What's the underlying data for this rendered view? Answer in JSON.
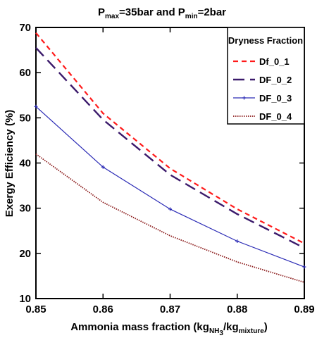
{
  "chart_data": {
    "type": "line",
    "title": {
      "p1": "P",
      "p1_sub": "max",
      "p2": "=35bar and P",
      "p2_sub": "min",
      "p3": "=2bar"
    },
    "xlabel": {
      "prefix": "Ammonia mass fraction (kg",
      "sub1": "NH",
      "sub1b": "3",
      "mid": "/kg",
      "sub2": "mixture",
      "suffix": ")"
    },
    "ylabel": "Exergy Efficiency (%)",
    "xlim": [
      0.85,
      0.89
    ],
    "ylim": [
      10,
      70
    ],
    "x_ticks": [
      "0.85",
      "0.86",
      "0.87",
      "0.88",
      "0.89"
    ],
    "y_ticks": [
      "10",
      "20",
      "30",
      "40",
      "50",
      "60",
      "70"
    ],
    "legend": {
      "title": "Dryness Fraction",
      "position": "top-right"
    },
    "x": [
      0.85,
      0.86,
      0.87,
      0.88,
      0.89
    ],
    "series": [
      {
        "name": "Df_0_1",
        "values": [
          68.8,
          51.0,
          38.8,
          29.8,
          22.2
        ],
        "color": "#ff1a1a",
        "style": "dashed"
      },
      {
        "name": "DF_0_2",
        "values": [
          65.5,
          49.6,
          37.4,
          28.7,
          21.2
        ],
        "color": "#3b1a6b",
        "style": "long-dash"
      },
      {
        "name": "DF_0_3",
        "values": [
          52.5,
          39.1,
          29.8,
          22.7,
          17.0
        ],
        "color": "#2a2ab5",
        "style": "solid-cross"
      },
      {
        "name": "DF_0_4",
        "values": [
          42.0,
          31.3,
          23.9,
          18.1,
          13.6
        ],
        "color": "#8b1a1a",
        "style": "dotted-dense"
      }
    ]
  }
}
